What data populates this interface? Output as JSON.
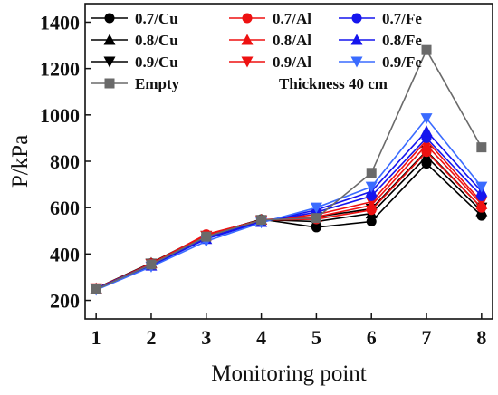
{
  "chart_data": {
    "type": "line",
    "xlabel": "Monitoring point",
    "ylabel": "P/kPa",
    "xlim": [
      0.8,
      8.2
    ],
    "ylim": [
      120,
      1480
    ],
    "xticks": [
      1,
      2,
      3,
      4,
      5,
      6,
      7,
      8
    ],
    "yticks": [
      200,
      400,
      600,
      800,
      1000,
      1200,
      1400
    ],
    "grid": false,
    "legend_position": "top-left",
    "annotation": "Thickness 40 cm",
    "series": [
      {
        "name": "0.7/Cu",
        "color": "#000000",
        "marker": "circle",
        "x": [
          1,
          2,
          3,
          4,
          5,
          6,
          7,
          8
        ],
        "y": [
          250,
          360,
          480,
          550,
          515,
          540,
          790,
          565
        ]
      },
      {
        "name": "0.8/Cu",
        "color": "#000000",
        "marker": "triangle-up",
        "x": [
          1,
          2,
          3,
          4,
          5,
          6,
          7,
          8
        ],
        "y": [
          252,
          362,
          482,
          548,
          540,
          575,
          820,
          585
        ]
      },
      {
        "name": "0.9/Cu",
        "color": "#000000",
        "marker": "triangle-down",
        "x": [
          1,
          2,
          3,
          4,
          5,
          6,
          7,
          8
        ],
        "y": [
          250,
          358,
          478,
          545,
          560,
          595,
          845,
          600
        ]
      },
      {
        "name": "0.7/Al",
        "color": "#ee1111",
        "marker": "circle",
        "x": [
          1,
          2,
          3,
          4,
          5,
          6,
          7,
          8
        ],
        "y": [
          248,
          358,
          485,
          546,
          550,
          590,
          840,
          600
        ]
      },
      {
        "name": "0.8/Al",
        "color": "#ee1111",
        "marker": "triangle-up",
        "x": [
          1,
          2,
          3,
          4,
          5,
          6,
          7,
          8
        ],
        "y": [
          250,
          360,
          480,
          548,
          560,
          610,
          870,
          615
        ]
      },
      {
        "name": "0.9/Al",
        "color": "#ee1111",
        "marker": "triangle-down",
        "x": [
          1,
          2,
          3,
          4,
          5,
          6,
          7,
          8
        ],
        "y": [
          252,
          356,
          478,
          545,
          570,
          625,
          890,
          625
        ]
      },
      {
        "name": "0.7/Fe",
        "color": "#1515ee",
        "marker": "circle",
        "x": [
          1,
          2,
          3,
          4,
          5,
          6,
          7,
          8
        ],
        "y": [
          250,
          355,
          470,
          540,
          580,
          650,
          900,
          650
        ]
      },
      {
        "name": "0.8/Fe",
        "color": "#1515ee",
        "marker": "triangle-up",
        "x": [
          1,
          2,
          3,
          4,
          5,
          6,
          7,
          8
        ],
        "y": [
          248,
          350,
          465,
          538,
          590,
          670,
          930,
          670
        ]
      },
      {
        "name": "0.9/Fe",
        "color": "#3a6bff",
        "marker": "triangle-down",
        "x": [
          1,
          2,
          3,
          4,
          5,
          6,
          7,
          8
        ],
        "y": [
          245,
          345,
          455,
          535,
          600,
          690,
          985,
          690
        ]
      },
      {
        "name": "Empty",
        "color": "#6a6a6a",
        "marker": "square",
        "x": [
          1,
          2,
          3,
          4,
          5,
          6,
          7,
          8
        ],
        "y": [
          247,
          355,
          475,
          547,
          555,
          750,
          1280,
          860
        ]
      }
    ],
    "legend": {
      "columns": [
        [
          "0.7/Cu",
          "0.8/Cu",
          "0.9/Cu",
          "Empty"
        ],
        [
          "0.7/Al",
          "0.8/Al",
          "0.9/Al"
        ],
        [
          "0.7/Fe",
          "0.8/Fe",
          "0.9/Fe"
        ]
      ]
    }
  }
}
